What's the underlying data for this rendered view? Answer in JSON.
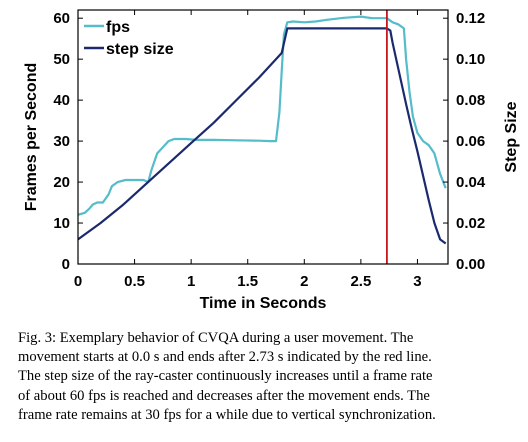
{
  "chart_data": {
    "type": "line",
    "xlabel": "Time in Seconds",
    "ylabel_left": "Frames per Second",
    "ylabel_right": "Step Size",
    "xlim": [
      0,
      3.27
    ],
    "ylim_left": [
      0,
      62
    ],
    "ylim_right": [
      0,
      0.124
    ],
    "x_ticks": [
      "0",
      "0.5",
      "1",
      "1.5",
      "2",
      "2.5",
      "3"
    ],
    "x_tick_values": [
      0,
      0.5,
      1,
      1.5,
      2,
      2.5,
      3
    ],
    "y_left_ticks": [
      "0",
      "10",
      "20",
      "30",
      "40",
      "50",
      "60"
    ],
    "y_left_tick_values": [
      0,
      10,
      20,
      30,
      40,
      50,
      60
    ],
    "y_right_ticks": [
      "0.00",
      "0.02",
      "0.04",
      "0.06",
      "0.08",
      "0.10",
      "0.12"
    ],
    "y_right_tick_values": [
      0,
      0.02,
      0.04,
      0.06,
      0.08,
      0.1,
      0.12
    ],
    "legend_position": "top-left",
    "grid": false,
    "series": [
      {
        "name": "fps",
        "axis": "left",
        "color": "#55bcc9",
        "x": [
          0,
          0.06,
          0.1,
          0.13,
          0.17,
          0.22,
          0.27,
          0.3,
          0.35,
          0.42,
          0.5,
          0.58,
          0.62,
          0.65,
          0.7,
          0.75,
          0.8,
          0.85,
          0.95,
          1.05,
          1.2,
          1.4,
          1.6,
          1.7,
          1.75,
          1.78,
          1.8,
          1.82,
          1.85,
          1.9,
          2.0,
          2.1,
          2.2,
          2.35,
          2.5,
          2.6,
          2.73,
          2.78,
          2.83,
          2.88,
          2.9,
          2.93,
          2.96,
          3.0,
          3.05,
          3.1,
          3.15,
          3.2,
          3.25
        ],
        "values": [
          12,
          12.5,
          13.5,
          14.5,
          15,
          15,
          17,
          19,
          20,
          20.5,
          20.5,
          20.5,
          20,
          23,
          27,
          28.5,
          30,
          30.5,
          30.5,
          30.3,
          30.3,
          30.2,
          30.1,
          30,
          30,
          37,
          47,
          56,
          59,
          59.2,
          59,
          59.2,
          59.6,
          60.1,
          60.4,
          60,
          60,
          59,
          58.5,
          57.5,
          50,
          42,
          36,
          32,
          30,
          29,
          27,
          22,
          18.5
        ]
      },
      {
        "name": "step size",
        "axis": "right",
        "color": "#1b2a6e",
        "x": [
          0,
          0.2,
          0.4,
          0.6,
          0.8,
          1.0,
          1.2,
          1.4,
          1.6,
          1.8,
          1.85,
          2.0,
          2.2,
          2.4,
          2.6,
          2.7,
          2.73,
          2.76,
          2.78,
          2.82,
          2.86,
          2.9,
          2.95,
          3.0,
          3.05,
          3.1,
          3.15,
          3.2,
          3.25
        ],
        "values": [
          0.012,
          0.02,
          0.029,
          0.039,
          0.049,
          0.059,
          0.069,
          0.08,
          0.091,
          0.103,
          0.115,
          0.115,
          0.115,
          0.115,
          0.115,
          0.115,
          0.115,
          0.114,
          0.108,
          0.098,
          0.088,
          0.078,
          0.066,
          0.055,
          0.043,
          0.031,
          0.02,
          0.012,
          0.01
        ]
      }
    ],
    "marker_line": {
      "x": 2.73,
      "color": "#c8161d"
    }
  },
  "caption_lines": [
    "Fig. 3: Exemplary behavior of CVQA during a user movement. The",
    "movement starts at 0.0 s and ends after 2.73 s indicated by the red line.",
    "The step size of the ray-caster continuously increases until a frame rate",
    "of about 60 fps is reached and decreases after the movement ends. The",
    "frame rate remains at 30 fps for a while due to vertical synchronization."
  ]
}
